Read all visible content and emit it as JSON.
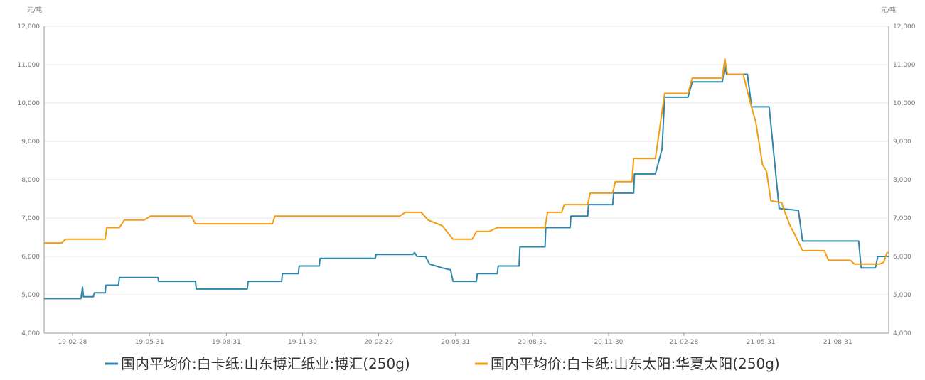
{
  "chart_data": {
    "type": "line",
    "title": "",
    "y_unit_left": "元/吨",
    "y_unit_right": "元/吨",
    "ylim": [
      4000,
      12000
    ],
    "y_ticks": [
      "4,000",
      "5,000",
      "6,000",
      "7,000",
      "8,000",
      "9,000",
      "10,000",
      "11,000",
      "12,000"
    ],
    "xlim": [
      "2019-01-25",
      "2021-10-31"
    ],
    "x_ticks": [
      "19-02-28",
      "19-05-31",
      "19-08-31",
      "19-11-30",
      "20-02-29",
      "20-05-31",
      "20-08-31",
      "20-11-30",
      "21-02-28",
      "21-05-31",
      "21-08-31"
    ],
    "grid": true,
    "legend_position": "bottom",
    "series": [
      {
        "name": "国内平均价:白卡纸:山东博汇纸业:博汇(250g)",
        "color": "#2E86AB",
        "points": [
          [
            "2019-01-25",
            4900
          ],
          [
            "2019-03-10",
            4900
          ],
          [
            "2019-03-12",
            5200
          ],
          [
            "2019-03-13",
            4950
          ],
          [
            "2019-03-25",
            4950
          ],
          [
            "2019-03-26",
            5050
          ],
          [
            "2019-04-08",
            5050
          ],
          [
            "2019-04-09",
            5250
          ],
          [
            "2019-04-24",
            5250
          ],
          [
            "2019-04-25",
            5450
          ],
          [
            "2019-06-10",
            5450
          ],
          [
            "2019-06-11",
            5350
          ],
          [
            "2019-07-25",
            5350
          ],
          [
            "2019-07-26",
            5150
          ],
          [
            "2019-09-25",
            5150
          ],
          [
            "2019-09-26",
            5350
          ],
          [
            "2019-11-05",
            5350
          ],
          [
            "2019-11-06",
            5550
          ],
          [
            "2019-11-25",
            5550
          ],
          [
            "2019-11-26",
            5750
          ],
          [
            "2019-12-20",
            5750
          ],
          [
            "2019-12-21",
            5950
          ],
          [
            "2020-02-25",
            5950
          ],
          [
            "2020-02-26",
            6050
          ],
          [
            "2020-04-10",
            6050
          ],
          [
            "2020-04-12",
            6100
          ],
          [
            "2020-04-15",
            6000
          ],
          [
            "2020-04-25",
            6000
          ],
          [
            "2020-04-30",
            5800
          ],
          [
            "2020-05-15",
            5700
          ],
          [
            "2020-05-25",
            5650
          ],
          [
            "2020-05-28",
            5350
          ],
          [
            "2020-06-25",
            5350
          ],
          [
            "2020-06-26",
            5550
          ],
          [
            "2020-07-20",
            5550
          ],
          [
            "2020-07-21",
            5750
          ],
          [
            "2020-08-15",
            5750
          ],
          [
            "2020-08-16",
            6250
          ],
          [
            "2020-09-15",
            6250
          ],
          [
            "2020-09-16",
            6750
          ],
          [
            "2020-10-15",
            6750
          ],
          [
            "2020-10-16",
            7050
          ],
          [
            "2020-11-05",
            7050
          ],
          [
            "2020-11-06",
            7350
          ],
          [
            "2020-12-05",
            7350
          ],
          [
            "2020-12-06",
            7650
          ],
          [
            "2020-12-30",
            7650
          ],
          [
            "2020-12-31",
            8150
          ],
          [
            "2021-01-25",
            8150
          ],
          [
            "2021-02-02",
            8800
          ],
          [
            "2021-02-05",
            10150
          ],
          [
            "2021-03-05",
            10150
          ],
          [
            "2021-03-10",
            10550
          ],
          [
            "2021-04-15",
            10550
          ],
          [
            "2021-04-18",
            11000
          ],
          [
            "2021-04-20",
            10750
          ],
          [
            "2021-05-15",
            10750
          ],
          [
            "2021-05-20",
            9900
          ],
          [
            "2021-06-10",
            9900
          ],
          [
            "2021-06-22",
            7250
          ],
          [
            "2021-07-15",
            7200
          ],
          [
            "2021-07-20",
            6400
          ],
          [
            "2021-09-25",
            6400
          ],
          [
            "2021-09-28",
            5700
          ],
          [
            "2021-10-15",
            5700
          ],
          [
            "2021-10-18",
            6000
          ],
          [
            "2021-10-31",
            6000
          ]
        ]
      },
      {
        "name": "国内平均价:白卡纸:山东太阳:华夏太阳(250g)",
        "color": "#F39C12",
        "points": [
          [
            "2019-01-25",
            6350
          ],
          [
            "2019-02-15",
            6350
          ],
          [
            "2019-02-20",
            6450
          ],
          [
            "2019-04-08",
            6450
          ],
          [
            "2019-04-10",
            6750
          ],
          [
            "2019-04-25",
            6750
          ],
          [
            "2019-05-01",
            6950
          ],
          [
            "2019-05-25",
            6950
          ],
          [
            "2019-06-01",
            7050
          ],
          [
            "2019-07-20",
            7050
          ],
          [
            "2019-07-25",
            6850
          ],
          [
            "2019-10-25",
            6850
          ],
          [
            "2019-10-28",
            7050
          ],
          [
            "2020-03-25",
            7050
          ],
          [
            "2020-04-01",
            7150
          ],
          [
            "2020-04-20",
            7150
          ],
          [
            "2020-04-28",
            6950
          ],
          [
            "2020-05-15",
            6800
          ],
          [
            "2020-05-28",
            6450
          ],
          [
            "2020-06-20",
            6450
          ],
          [
            "2020-06-25",
            6650
          ],
          [
            "2020-07-10",
            6650
          ],
          [
            "2020-07-20",
            6750
          ],
          [
            "2020-09-15",
            6750
          ],
          [
            "2020-09-18",
            7150
          ],
          [
            "2020-10-05",
            7150
          ],
          [
            "2020-10-08",
            7350
          ],
          [
            "2020-11-05",
            7350
          ],
          [
            "2020-11-08",
            7650
          ],
          [
            "2020-12-05",
            7650
          ],
          [
            "2020-12-08",
            7950
          ],
          [
            "2020-12-28",
            7950
          ],
          [
            "2020-12-30",
            8550
          ],
          [
            "2021-01-25",
            8550
          ],
          [
            "2021-02-05",
            10250
          ],
          [
            "2021-03-05",
            10250
          ],
          [
            "2021-03-10",
            10650
          ],
          [
            "2021-04-15",
            10650
          ],
          [
            "2021-04-18",
            11150
          ],
          [
            "2021-04-21",
            10750
          ],
          [
            "2021-05-10",
            10750
          ],
          [
            "2021-05-18",
            10050
          ],
          [
            "2021-05-25",
            9500
          ],
          [
            "2021-06-02",
            8400
          ],
          [
            "2021-06-07",
            8200
          ],
          [
            "2021-06-12",
            7450
          ],
          [
            "2021-06-25",
            7400
          ],
          [
            "2021-06-28",
            7200
          ],
          [
            "2021-07-05",
            6800
          ],
          [
            "2021-07-10",
            6600
          ],
          [
            "2021-07-20",
            6150
          ],
          [
            "2021-08-15",
            6150
          ],
          [
            "2021-08-20",
            5900
          ],
          [
            "2021-09-15",
            5900
          ],
          [
            "2021-09-20",
            5800
          ],
          [
            "2021-10-20",
            5800
          ],
          [
            "2021-10-25",
            5850
          ],
          [
            "2021-10-29",
            6100
          ],
          [
            "2021-10-31",
            6100
          ]
        ]
      }
    ]
  }
}
